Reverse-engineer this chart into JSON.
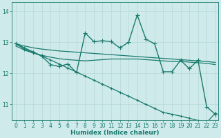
{
  "xlabel": "Humidex (Indice chaleur)",
  "background_color": "#ceeaea",
  "line_color": "#1a7a6e",
  "grid_color": "#b8d8d8",
  "xlim": [
    -0.5,
    23.3
  ],
  "ylim": [
    10.5,
    14.3
  ],
  "yticks": [
    11,
    12,
    13,
    14
  ],
  "xticks": [
    0,
    1,
    2,
    3,
    4,
    5,
    6,
    7,
    8,
    9,
    10,
    11,
    12,
    13,
    14,
    15,
    16,
    17,
    18,
    19,
    20,
    21,
    22,
    23
  ],
  "lines": [
    {
      "x": [
        0,
        1,
        2,
        3,
        4,
        5,
        6,
        7,
        8,
        9,
        10,
        11,
        12,
        13,
        14,
        15,
        16,
        17,
        18,
        19,
        20,
        21,
        22,
        23
      ],
      "y": [
        12.95,
        12.88,
        12.82,
        12.78,
        12.75,
        12.72,
        12.7,
        12.68,
        12.66,
        12.64,
        12.62,
        12.6,
        12.58,
        12.56,
        12.54,
        12.52,
        12.5,
        12.48,
        12.46,
        12.44,
        12.42,
        12.4,
        12.38,
        12.35
      ],
      "marker": null,
      "linewidth": 0.9
    },
    {
      "x": [
        0,
        1,
        2,
        3,
        4,
        5,
        6,
        7,
        8,
        9,
        10,
        11,
        12,
        13,
        14,
        15,
        16,
        17,
        18,
        19,
        20,
        21,
        22,
        23
      ],
      "y": [
        12.88,
        12.75,
        12.65,
        12.58,
        12.52,
        12.47,
        12.44,
        12.42,
        12.4,
        12.42,
        12.44,
        12.46,
        12.46,
        12.46,
        12.46,
        12.44,
        12.42,
        12.4,
        12.38,
        12.38,
        12.36,
        12.34,
        12.32,
        12.28
      ],
      "marker": null,
      "linewidth": 0.9
    },
    {
      "x": [
        0,
        1,
        2,
        3,
        4,
        5,
        6,
        7,
        8,
        9,
        10,
        11,
        12,
        13,
        14,
        15,
        16,
        17,
        18,
        19,
        20,
        21,
        22,
        23
      ],
      "y": [
        12.95,
        12.78,
        12.68,
        12.55,
        12.28,
        12.22,
        12.3,
        12.02,
        13.3,
        13.02,
        13.05,
        13.02,
        12.82,
        13.0,
        13.88,
        13.1,
        12.95,
        12.05,
        12.05,
        12.42,
        12.15,
        12.42,
        10.92,
        10.68
      ],
      "marker": "+",
      "markersize": 4,
      "linewidth": 1.0
    },
    {
      "x": [
        0,
        1,
        2,
        3,
        4,
        5,
        6,
        7,
        8,
        9,
        10,
        11,
        12,
        13,
        14,
        15,
        16,
        17,
        18,
        19,
        20,
        21,
        22,
        23
      ],
      "y": [
        12.95,
        12.82,
        12.69,
        12.56,
        12.43,
        12.3,
        12.17,
        12.04,
        11.91,
        11.78,
        11.65,
        11.52,
        11.39,
        11.26,
        11.13,
        11.0,
        10.87,
        10.74,
        10.68,
        10.62,
        10.55,
        10.48,
        10.41,
        10.72
      ],
      "marker": "+",
      "markersize": 3,
      "linewidth": 0.9
    }
  ]
}
